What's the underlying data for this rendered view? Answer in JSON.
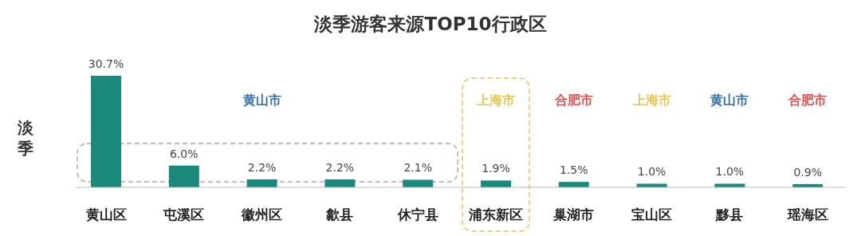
{
  "chart_data": {
    "type": "bar",
    "title": "淡季游客来源TOP10行政区",
    "ylabel": "淡季",
    "categories": [
      "黄山区",
      "屯溪区",
      "徽州区",
      "歙县",
      "休宁县",
      "浦东新区",
      "巢湖市",
      "宝山区",
      "黟县",
      "瑶海区"
    ],
    "values": [
      30.7,
      6.0,
      2.2,
      2.2,
      2.1,
      1.9,
      1.5,
      1.0,
      1.0,
      0.9
    ],
    "value_labels": [
      "30.7%",
      "6.0%",
      "2.2%",
      "2.2%",
      "2.1%",
      "1.9%",
      "1.5%",
      "1.0%",
      "1.0%",
      "0.9%"
    ],
    "color": "#1b8a7d",
    "annotations": [
      "黄山市",
      "上海市",
      "合肥市",
      "上海市",
      "黄山市",
      "合肥市"
    ]
  }
}
